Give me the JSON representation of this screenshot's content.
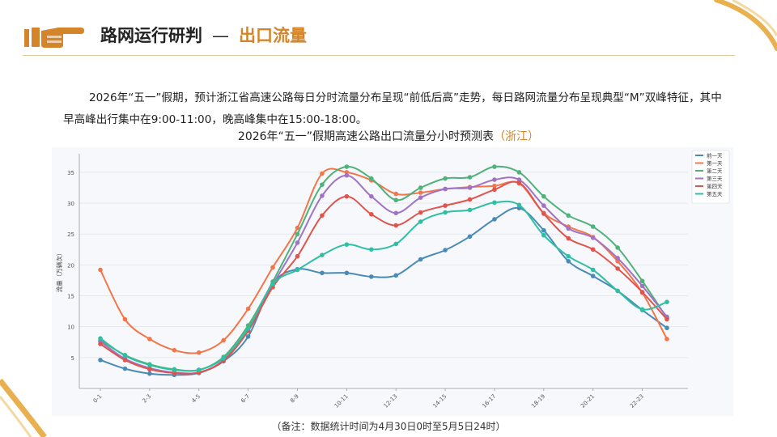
{
  "header": {
    "title": "路网运行研判",
    "separator": "—",
    "subtitle": "出口流量"
  },
  "summary": "2026年“五一”假期，预计浙江省高速公路每日分时流量分布呈现“前低后高”走势，每日路网流量分布呈现典型“M”双峰特征，其中早高峰出行集中在9:00-11:00，晚高峰集中在15:00-18:00。",
  "chart_caption": {
    "main": "2026年“五一”假期高速公路出口流量分小时预测表",
    "region": "（浙江）"
  },
  "footnote": "（备注：数据统计时间为4月30日0时至5月5日24时）",
  "colors": {
    "accent": "#d4852a",
    "gold": "#e8b04e"
  },
  "chart_data": {
    "type": "line",
    "ylabel": "流量（万辆次）",
    "ylim": [
      0,
      38
    ],
    "yticks": [
      5,
      10,
      15,
      20,
      25,
      30,
      35
    ],
    "grid": true,
    "legend": "top-right",
    "categories": [
      "0-1",
      "1-2",
      "2-3",
      "3-4",
      "4-5",
      "5-6",
      "6-7",
      "7-8",
      "8-9",
      "9-10",
      "10-11",
      "11-12",
      "12-13",
      "13-14",
      "14-15",
      "15-16",
      "16-17",
      "17-18",
      "18-19",
      "19-20",
      "20-21",
      "21-22",
      "22-23",
      "23-24"
    ],
    "tick_labels": [
      "0-1",
      "2-3",
      "4-5",
      "6-7",
      "8-9",
      "10-11",
      "12-13",
      "14-15",
      "16-17",
      "18-19",
      "20-21",
      "22-23"
    ],
    "series": [
      {
        "name": "前一天",
        "color": "#4a8bb6",
        "values": [
          4.6,
          3.2,
          2.4,
          2.2,
          2.5,
          4.4,
          8.4,
          17.0,
          19.3,
          18.7,
          18.7,
          18.1,
          18.3,
          20.9,
          22.4,
          24.6,
          27.4,
          29.2,
          25.6,
          20.6,
          18.2,
          15.8,
          12.7,
          9.8
        ]
      },
      {
        "name": "第一天",
        "color": "#f2764a",
        "values": [
          19.2,
          11.2,
          8.0,
          6.2,
          5.8,
          7.8,
          12.9,
          19.6,
          26.0,
          34.8,
          35.0,
          33.7,
          31.5,
          31.7,
          32.3,
          32.6,
          32.8,
          33.2,
          28.4,
          26.2,
          24.5,
          20.6,
          15.5,
          8.0
        ]
      },
      {
        "name": "第二天",
        "color": "#4fb27a",
        "values": [
          7.8,
          5.4,
          3.9,
          3.1,
          3.0,
          5.1,
          10.2,
          17.3,
          25.0,
          33.0,
          35.9,
          34.0,
          30.5,
          32.5,
          34.0,
          34.2,
          35.9,
          35.0,
          31.1,
          28.0,
          26.2,
          22.8,
          17.4,
          11.4
        ]
      },
      {
        "name": "第三天",
        "color": "#a173c4",
        "values": [
          7.6,
          4.8,
          3.3,
          2.6,
          2.6,
          4.6,
          9.7,
          16.8,
          23.6,
          31.2,
          34.5,
          31.1,
          28.4,
          30.9,
          32.3,
          32.5,
          33.8,
          33.8,
          29.6,
          25.9,
          24.4,
          21.1,
          16.6,
          11.6
        ]
      },
      {
        "name": "第四天",
        "color": "#e0544e",
        "values": [
          7.2,
          4.6,
          3.1,
          2.5,
          2.6,
          4.5,
          9.3,
          16.4,
          21.4,
          28.0,
          31.1,
          28.2,
          26.4,
          28.5,
          29.6,
          30.6,
          32.2,
          33.3,
          28.3,
          24.3,
          22.5,
          19.4,
          15.6,
          11.2
        ]
      },
      {
        "name": "第五天",
        "color": "#2fbfa3",
        "values": [
          8.1,
          5.3,
          3.8,
          3.0,
          3.0,
          4.9,
          9.7,
          16.9,
          19.2,
          21.6,
          23.3,
          22.5,
          23.4,
          27.0,
          28.5,
          28.9,
          30.1,
          29.7,
          24.8,
          21.4,
          19.2,
          15.8,
          12.8,
          14.0
        ]
      }
    ]
  }
}
